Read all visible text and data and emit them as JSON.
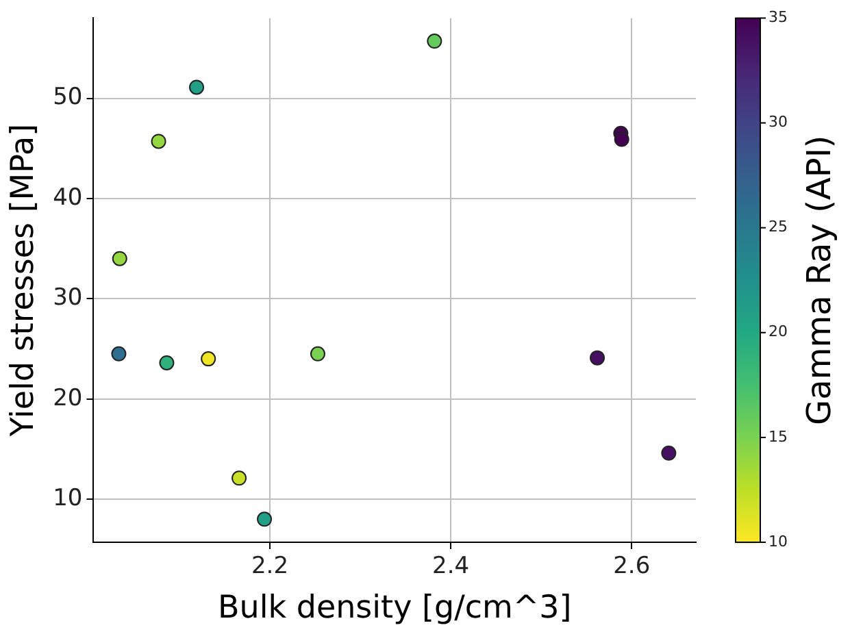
{
  "chart_data": {
    "type": "scatter",
    "xlabel": "Bulk density [g/cm^3]",
    "ylabel": "Yield stresses [MPa]",
    "clabel": "Gamma Ray (API)",
    "x": [
      2.034,
      2.033,
      2.077,
      2.119,
      2.086,
      2.132,
      2.166,
      2.194,
      2.253,
      2.382,
      2.588,
      2.589,
      2.562,
      2.641
    ],
    "values": [
      34.0,
      24.5,
      45.7,
      51.1,
      23.6,
      24.0,
      12.1,
      8.0,
      24.5,
      55.7,
      46.5,
      45.9,
      24.1,
      14.6
    ],
    "cvalues": [
      14,
      26,
      14,
      21,
      19,
      10.5,
      12,
      21,
      15,
      16,
      35,
      35,
      34,
      34
    ],
    "clim": [
      10,
      35
    ],
    "cticks": [
      10,
      15,
      20,
      25,
      30,
      35
    ],
    "xlim": [
      2.005,
      2.671
    ],
    "xticks": [
      2.2,
      2.4,
      2.6
    ],
    "ylim": [
      5.7,
      58
    ],
    "yticks": [
      10,
      20,
      30,
      40,
      50
    ],
    "grid": true,
    "legend": false,
    "marker": "circle"
  }
}
